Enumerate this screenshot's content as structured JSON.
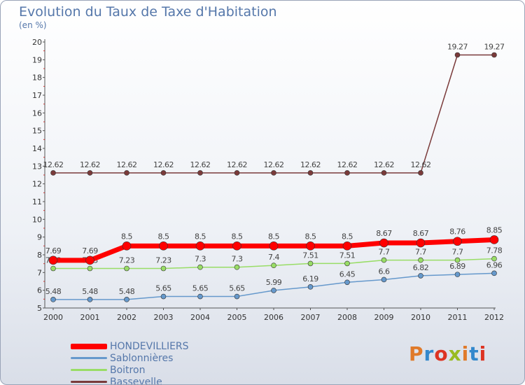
{
  "title": "Evolution du Taux de Taxe d'Habitation",
  "subtitle": "(en %)",
  "logo": {
    "text": "Proxiti",
    "colors": [
      "#e07a2a",
      "#3388cc",
      "#dd3322",
      "#99bb22",
      "#e07a2a",
      "#3388cc",
      "#dd3322"
    ]
  },
  "chart_data": {
    "type": "line",
    "x": [
      "2000",
      "2001",
      "2002",
      "2003",
      "2004",
      "2005",
      "2006",
      "2007",
      "2008",
      "2009",
      "2010",
      "2011",
      "2012"
    ],
    "ylim": [
      5,
      20
    ],
    "yticks": [
      "5",
      "6",
      "7",
      "8",
      "9",
      "10",
      "11",
      "12",
      "13",
      "14",
      "15",
      "16",
      "17",
      "18",
      "19",
      "20"
    ],
    "grid": false,
    "legend_position": "bottom-left",
    "series": [
      {
        "name": "Bassevelle",
        "color": "#7a3a3a",
        "width": 1.5,
        "marker": 3.5,
        "values": [
          12.62,
          12.62,
          12.62,
          12.62,
          12.62,
          12.62,
          12.62,
          12.62,
          12.62,
          12.62,
          12.62,
          19.27,
          19.27
        ],
        "labels": [
          "12.62",
          "12.62",
          "12.62",
          "12.62",
          "12.62",
          "12.62",
          "12.62",
          "12.62",
          "12.62",
          "12.62",
          "12.62",
          "19.27",
          "19.27"
        ]
      },
      {
        "name": "Sablonnières",
        "color": "#6699cc",
        "width": 1.5,
        "marker": 3.5,
        "values": [
          5.48,
          5.48,
          5.48,
          5.65,
          5.65,
          5.65,
          5.99,
          6.19,
          6.45,
          6.6,
          6.82,
          6.89,
          6.96
        ],
        "labels": [
          "5.48",
          "5.48",
          "5.48",
          "5.65",
          "5.65",
          "5.65",
          "5.99",
          "6.19",
          "6.45",
          "6.6",
          "6.82",
          "6.89",
          "6.96"
        ]
      },
      {
        "name": "Boitron",
        "color": "#99dd66",
        "width": 1.5,
        "marker": 3.5,
        "values": [
          7.23,
          7.23,
          7.23,
          7.23,
          7.3,
          7.3,
          7.4,
          7.51,
          7.51,
          7.7,
          7.7,
          7.7,
          7.78
        ],
        "labels": [
          "7.23",
          "7.23",
          "7.23",
          "7.23",
          "7.3",
          "7.3",
          "7.4",
          "7.51",
          "7.51",
          "7.7",
          "7.7",
          "7.7",
          "7.78"
        ]
      },
      {
        "name": "HONDEVILLIERS",
        "color": "#ff0000",
        "width": 7,
        "marker": 6,
        "values": [
          7.69,
          7.69,
          8.5,
          8.5,
          8.5,
          8.5,
          8.5,
          8.5,
          8.5,
          8.67,
          8.67,
          8.76,
          8.85
        ],
        "labels": [
          "7.69",
          "7.69",
          "8.5",
          "8.5",
          "8.5",
          "8.5",
          "8.5",
          "8.5",
          "8.5",
          "8.67",
          "8.67",
          "8.76",
          "8.85"
        ]
      }
    ],
    "legend": [
      {
        "name": "HONDEVILLIERS",
        "color": "#ff0000",
        "thickness": 8
      },
      {
        "name": "Sablonnières",
        "color": "#6699cc",
        "thickness": 3
      },
      {
        "name": "Boitron",
        "color": "#99dd66",
        "thickness": 3
      },
      {
        "name": "Bassevelle",
        "color": "#7a3a3a",
        "thickness": 3
      }
    ]
  }
}
